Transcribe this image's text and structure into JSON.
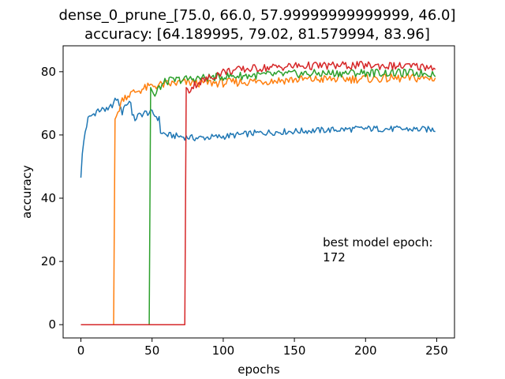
{
  "chart_data": {
    "type": "line",
    "title_line1": "dense_0_prune_[75.0, 66.0, 57.99999999999999, 46.0]",
    "title_line2": "accuracy: [64.189995, 79.02, 81.579994, 83.96]",
    "xlabel": "epochs",
    "ylabel": "accuracy",
    "xlim": [
      -12.5,
      262.5
    ],
    "ylim": [
      -4.2,
      88.2
    ],
    "xticks": [
      0,
      50,
      100,
      150,
      200,
      250
    ],
    "yticks": [
      0,
      20,
      40,
      60,
      80
    ],
    "annotation": {
      "line1": "best model epoch:",
      "line2": "172",
      "x": 170,
      "y": 20
    },
    "grid": false,
    "series": [
      {
        "color": "#1f77b4",
        "start": 0,
        "zero_until": -1,
        "jump_value": 46.5,
        "points": [
          [
            0,
            46.5
          ],
          [
            1,
            54
          ],
          [
            2,
            58
          ],
          [
            3,
            61
          ],
          [
            4,
            63
          ],
          [
            5,
            65
          ],
          [
            7,
            66
          ],
          [
            10,
            67
          ],
          [
            12,
            68
          ],
          [
            14,
            67
          ],
          [
            15,
            69
          ],
          [
            17,
            68
          ],
          [
            19,
            67.5
          ],
          [
            21,
            69
          ],
          [
            23,
            70
          ],
          [
            25,
            71.5
          ],
          [
            27,
            70
          ],
          [
            28,
            68
          ],
          [
            29,
            67
          ],
          [
            30,
            69
          ],
          [
            33,
            70
          ],
          [
            35,
            71
          ],
          [
            36,
            66
          ],
          [
            38,
            65
          ],
          [
            40,
            66
          ],
          [
            45,
            67
          ],
          [
            50,
            67
          ],
          [
            55,
            65
          ],
          [
            56,
            61
          ],
          [
            60,
            60
          ],
          [
            70,
            59.5
          ],
          [
            80,
            59
          ],
          [
            100,
            59.5
          ],
          [
            120,
            60.5
          ],
          [
            140,
            61
          ],
          [
            170,
            61.5
          ],
          [
            200,
            62
          ],
          [
            250,
            61.7
          ]
        ],
        "noise": 1.0
      },
      {
        "color": "#ff7f0e",
        "start": 0,
        "zero_until": 23,
        "jump_value": 65,
        "points": [
          [
            24,
            65
          ],
          [
            26,
            67
          ],
          [
            28,
            70
          ],
          [
            30,
            72
          ],
          [
            35,
            73
          ],
          [
            40,
            74
          ],
          [
            50,
            75.5
          ],
          [
            70,
            76.5
          ],
          [
            100,
            76.5
          ],
          [
            150,
            77.5
          ],
          [
            200,
            77.8
          ],
          [
            250,
            78
          ]
        ],
        "noise": 1.4
      },
      {
        "color": "#2ca02c",
        "start": 0,
        "zero_until": 48,
        "jump_value": 75,
        "points": [
          [
            49,
            75
          ],
          [
            52,
            72
          ],
          [
            55,
            75
          ],
          [
            60,
            77
          ],
          [
            70,
            77.5
          ],
          [
            100,
            78.5
          ],
          [
            150,
            79.3
          ],
          [
            200,
            79.7
          ],
          [
            250,
            79.5
          ]
        ],
        "noise": 1.3
      },
      {
        "color": "#d62728",
        "start": 0,
        "zero_until": 73,
        "jump_value": 75,
        "points": [
          [
            74,
            75
          ],
          [
            76,
            74
          ],
          [
            80,
            76
          ],
          [
            90,
            78
          ],
          [
            100,
            80
          ],
          [
            120,
            81
          ],
          [
            150,
            81.8
          ],
          [
            200,
            82
          ],
          [
            250,
            81.5
          ]
        ],
        "noise": 1.3
      }
    ]
  }
}
